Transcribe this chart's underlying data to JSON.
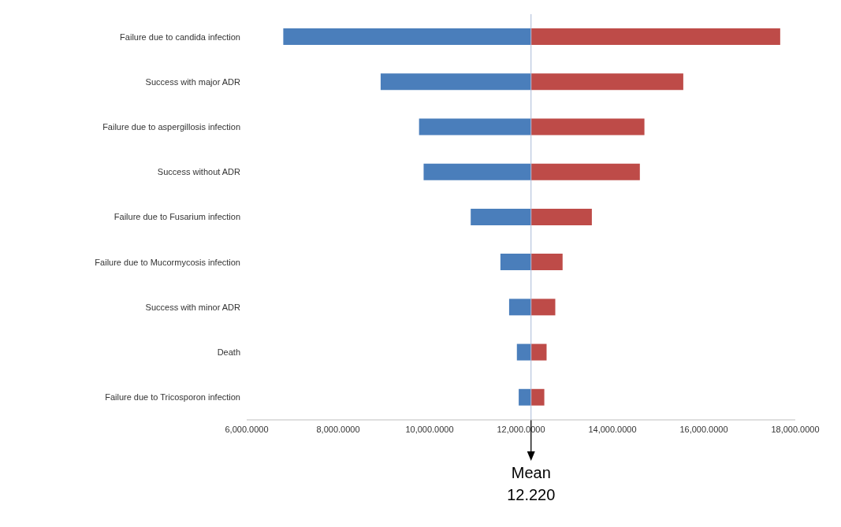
{
  "chart_data": {
    "type": "bar",
    "orientation": "horizontal",
    "categories": [
      "Failure due to candida infection",
      "Success with major ADR ",
      "Failure  due to aspergillosis infection",
      "Success without ADR ",
      "Failure due to Fusarium infection",
      "Failure due to Mucormycosis infection",
      "Success with minor ADR",
      "Death ",
      "Failure due to Tricosporon infection"
    ],
    "series": [
      {
        "color": "#4a7ebb",
        "base": [
          6800,
          8930,
          9770,
          9870,
          10900,
          11550,
          11740,
          11910,
          11950
        ],
        "values": [
          5420,
          3290,
          2450,
          2350,
          1320,
          670,
          480,
          310,
          270
        ]
      },
      {
        "color": "#be4b48",
        "base": [
          12220,
          12220,
          12220,
          12220,
          12220,
          12220,
          12220,
          12220,
          12220
        ],
        "values": [
          5450,
          3330,
          2480,
          2380,
          1330,
          690,
          530,
          340,
          290
        ]
      }
    ],
    "xlim": [
      6000,
      18000
    ],
    "xticks": [
      {
        "value": 6000,
        "label": "6,000.0000"
      },
      {
        "value": 8000,
        "label": "8,000.0000"
      },
      {
        "value": 10000,
        "label": "10,000.0000"
      },
      {
        "value": 12000,
        "label": "12,000.0000"
      },
      {
        "value": 14000,
        "label": "14,000.0000"
      },
      {
        "value": 16000,
        "label": "16,000.0000"
      },
      {
        "value": 18000,
        "label": "18,000.0000"
      }
    ],
    "ref_lines": [
      {
        "axis": "x",
        "value": 12220,
        "label": "Mean 12.220",
        "color": "#a9b9d6"
      }
    ]
  }
}
